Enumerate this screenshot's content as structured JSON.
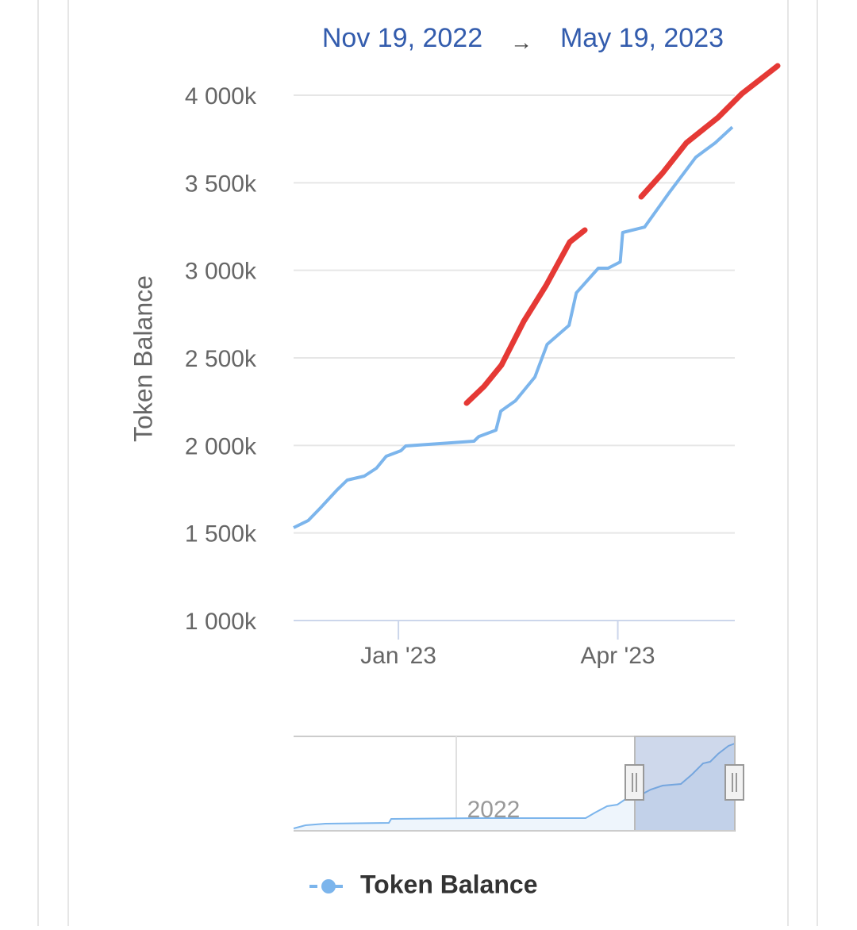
{
  "chart_data": {
    "type": "line",
    "range": {
      "from": "Nov 19, 2022",
      "separator": "→",
      "to": "May 19, 2023"
    },
    "y_label": "Token Balance",
    "x": [
      "2022-11-19",
      "2022-11-25",
      "2022-11-30",
      "2022-12-07",
      "2022-12-11",
      "2022-12-18",
      "2022-12-23",
      "2022-12-27",
      "2023-01-02",
      "2023-01-04",
      "2023-02-01",
      "2023-02-03",
      "2023-02-10",
      "2023-02-12",
      "2023-02-18",
      "2023-02-26",
      "2023-03-03",
      "2023-03-12",
      "2023-03-15",
      "2023-03-24",
      "2023-03-28",
      "2023-04-02",
      "2023-04-03",
      "2023-04-12",
      "2023-04-22",
      "2023-05-03",
      "2023-05-11",
      "2023-05-18"
    ],
    "series": [
      {
        "name": "Token Balance",
        "color": "#7cb5ec",
        "values": [
          1530,
          1571,
          1643,
          1748,
          1802,
          1825,
          1870,
          1938,
          1970,
          1997,
          2024,
          2051,
          2087,
          2196,
          2255,
          2391,
          2577,
          2686,
          2871,
          3012,
          3012,
          3048,
          3216,
          3247,
          3442,
          3646,
          3728,
          3818
        ]
      }
    ],
    "xlim": [
      "2022-11-19",
      "2023-05-19"
    ],
    "xticks": [
      {
        "value": "2023-01-01",
        "label": "Jan '23"
      },
      {
        "value": "2023-04-01",
        "label": "Apr '23"
      }
    ],
    "ylim": [
      1000,
      4000
    ],
    "yticks": [
      {
        "value": 1000,
        "label": "1 000k"
      },
      {
        "value": 1500,
        "label": "1 500k"
      },
      {
        "value": 2000,
        "label": "2 000k"
      },
      {
        "value": 2500,
        "label": "2 500k"
      },
      {
        "value": 3000,
        "label": "3 000k"
      },
      {
        "value": 3500,
        "label": "3 500k"
      },
      {
        "value": 4000,
        "label": "4 000k"
      }
    ],
    "grid": true,
    "navigator": {
      "label": "2022"
    }
  }
}
